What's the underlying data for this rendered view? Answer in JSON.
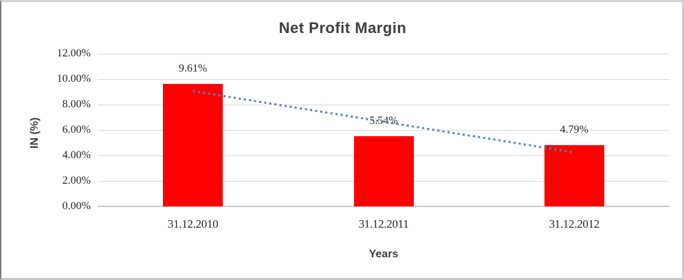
{
  "chart_data": {
    "type": "bar",
    "title": "Net Profit Margin",
    "xlabel": "Years",
    "ylabel": "IN (%)",
    "categories": [
      "31.12.2010",
      "31.12.2011",
      "31.12.2012"
    ],
    "values": [
      9.61,
      5.54,
      4.79
    ],
    "value_labels": [
      "9.61%",
      "5.54%",
      "4.79%"
    ],
    "ylim": [
      0,
      12
    ],
    "yticks": [
      0,
      2,
      4,
      6,
      8,
      10,
      12
    ],
    "ytick_labels": [
      "0.00%",
      "2.00%",
      "4.00%",
      "6.00%",
      "8.00%",
      "10.00%",
      "12.00%"
    ],
    "grid": true,
    "legend": false,
    "bar_color": "#ff0000",
    "trendline": {
      "style": "dotted",
      "color": "#4f81bd",
      "start_value": 9.06,
      "end_value": 4.24
    }
  }
}
